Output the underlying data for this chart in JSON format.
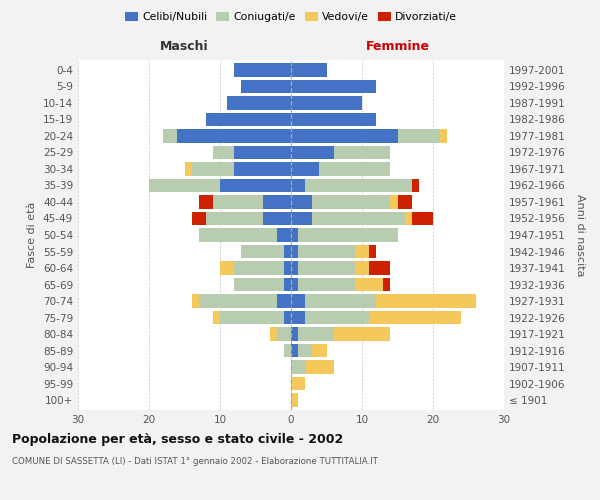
{
  "age_groups": [
    "100+",
    "95-99",
    "90-94",
    "85-89",
    "80-84",
    "75-79",
    "70-74",
    "65-69",
    "60-64",
    "55-59",
    "50-54",
    "45-49",
    "40-44",
    "35-39",
    "30-34",
    "25-29",
    "20-24",
    "15-19",
    "10-14",
    "5-9",
    "0-4"
  ],
  "birth_years": [
    "≤ 1901",
    "1902-1906",
    "1907-1911",
    "1912-1916",
    "1917-1921",
    "1922-1926",
    "1927-1931",
    "1932-1936",
    "1937-1941",
    "1942-1946",
    "1947-1951",
    "1952-1956",
    "1957-1961",
    "1962-1966",
    "1967-1971",
    "1972-1976",
    "1977-1981",
    "1982-1986",
    "1987-1991",
    "1992-1996",
    "1997-2001"
  ],
  "colors": {
    "celibi": "#4472C4",
    "coniugati": "#B8CCB0",
    "vedovi": "#F5C85C",
    "divorziati": "#CC2200"
  },
  "maschi": {
    "celibi": [
      0,
      0,
      0,
      0,
      0,
      1,
      2,
      1,
      1,
      1,
      2,
      4,
      4,
      10,
      8,
      8,
      16,
      12,
      9,
      7,
      8
    ],
    "coniugati": [
      0,
      0,
      0,
      1,
      2,
      9,
      11,
      7,
      7,
      6,
      11,
      8,
      7,
      10,
      6,
      3,
      2,
      0,
      0,
      0,
      0
    ],
    "vedovi": [
      0,
      0,
      0,
      0,
      1,
      1,
      1,
      0,
      2,
      0,
      0,
      0,
      0,
      0,
      1,
      0,
      0,
      0,
      0,
      0,
      0
    ],
    "divorziati": [
      0,
      0,
      0,
      0,
      0,
      0,
      0,
      0,
      0,
      0,
      0,
      2,
      2,
      0,
      0,
      0,
      0,
      0,
      0,
      0,
      0
    ]
  },
  "femmine": {
    "celibi": [
      0,
      0,
      0,
      1,
      1,
      2,
      2,
      1,
      1,
      1,
      1,
      3,
      3,
      2,
      4,
      6,
      15,
      12,
      10,
      12,
      5
    ],
    "coniugati": [
      0,
      0,
      2,
      2,
      5,
      9,
      10,
      8,
      8,
      8,
      14,
      13,
      11,
      15,
      10,
      8,
      6,
      0,
      0,
      0,
      0
    ],
    "vedovi": [
      1,
      2,
      4,
      2,
      8,
      13,
      14,
      4,
      2,
      2,
      0,
      1,
      1,
      0,
      0,
      0,
      1,
      0,
      0,
      0,
      0
    ],
    "divorziati": [
      0,
      0,
      0,
      0,
      0,
      0,
      0,
      1,
      3,
      1,
      0,
      3,
      2,
      1,
      0,
      0,
      0,
      0,
      0,
      0,
      0
    ]
  },
  "title": "Popolazione per età, sesso e stato civile - 2002",
  "subtitle": "COMUNE DI SASSETTA (LI) - Dati ISTAT 1° gennaio 2002 - Elaborazione TUTTITALIA.IT",
  "header_left": "Maschi",
  "header_right": "Femmine",
  "ylabel_left": "Fasce di età",
  "ylabel_right": "Anni di nascita",
  "xlim": 30,
  "legend_labels": [
    "Celibi/Nubili",
    "Coniugati/e",
    "Vedovi/e",
    "Divorziati/e"
  ],
  "bg_color": "#f2f2f2",
  "plot_bg_color": "#ffffff"
}
